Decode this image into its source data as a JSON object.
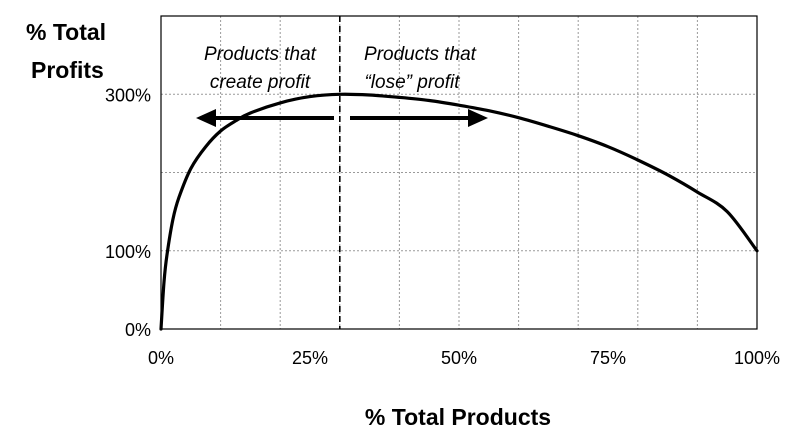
{
  "chart_data": {
    "type": "line",
    "title": "",
    "ylabel_line1": "% Total",
    "ylabel_line2": "Profits",
    "xlabel": "% Total Products",
    "x_ticks": [
      {
        "value": 0,
        "label": "0%"
      },
      {
        "value": 25,
        "label": "25%"
      },
      {
        "value": 50,
        "label": "50%"
      },
      {
        "value": 75,
        "label": "75%"
      },
      {
        "value": 100,
        "label": "100%"
      }
    ],
    "y_ticks": [
      {
        "value": 0,
        "label": "0%"
      },
      {
        "value": 100,
        "label": "100%"
      },
      {
        "value": 300,
        "label": "300%"
      }
    ],
    "xlim": [
      0,
      100
    ],
    "ylim": [
      0,
      400
    ],
    "grid": true,
    "divider_x": 30,
    "annotations": {
      "left_line1": "Products that",
      "left_line2": "create profit",
      "right_line1": "Products that",
      "right_line2": "“lose” profit"
    },
    "series": [
      {
        "x": [
          0,
          0.5,
          1,
          2,
          3,
          5,
          7.5,
          10,
          12.5,
          15,
          20,
          25,
          30,
          35,
          40,
          45,
          50,
          55,
          60,
          65,
          70,
          75,
          80,
          85,
          90,
          95,
          100
        ],
        "y": [
          0,
          60,
          95,
          140,
          168,
          205,
          233,
          253,
          266,
          276,
          289,
          297,
          300,
          299,
          296,
          292,
          286,
          279,
          270,
          259,
          247,
          233,
          216,
          197,
          175,
          150,
          100
        ]
      }
    ],
    "colors": {
      "line": "#000000",
      "grid": "#9a9a9a",
      "axis": "#000000"
    }
  }
}
